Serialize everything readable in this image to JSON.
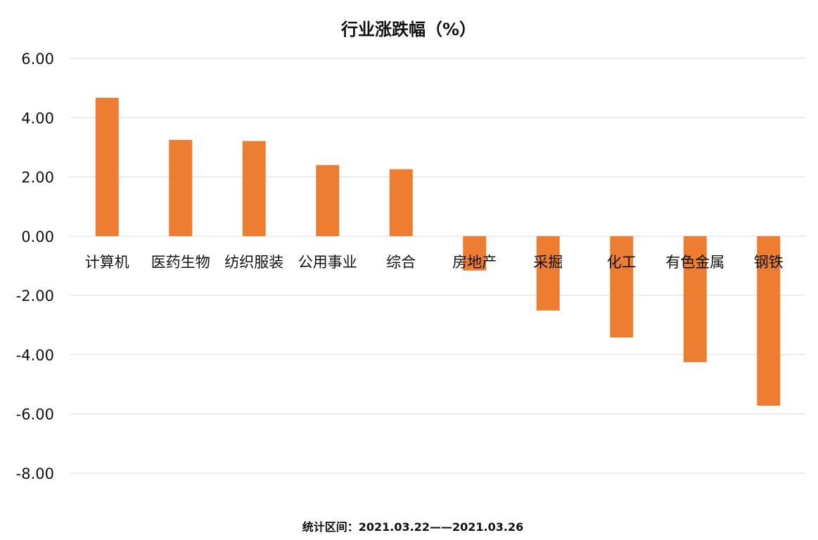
{
  "chart_data": {
    "type": "bar",
    "title": "行业涨跌幅（%）",
    "categories": [
      "计算机",
      "医药生物",
      "纺织服装",
      "公用事业",
      "综合",
      "房地产",
      "采掘",
      "化工",
      "有色金属",
      "钢铁"
    ],
    "values": [
      4.67,
      3.25,
      3.21,
      2.4,
      2.26,
      -1.16,
      -2.51,
      -3.42,
      -4.25,
      -5.72
    ],
    "ylim": [
      -8,
      6
    ],
    "yticks": [
      "6.00",
      "4.00",
      "2.00",
      "0.00",
      "-2.00",
      "-4.00",
      "-6.00",
      "-8.00"
    ],
    "ytick_values": [
      6,
      4,
      2,
      0,
      -2,
      -4,
      -6,
      -8
    ],
    "xlabel": "",
    "ylabel": "",
    "grid": true,
    "legend": "none",
    "bar_color": "#ed7d31",
    "note": "统计区间：2021.03.22——2021.03.26"
  }
}
